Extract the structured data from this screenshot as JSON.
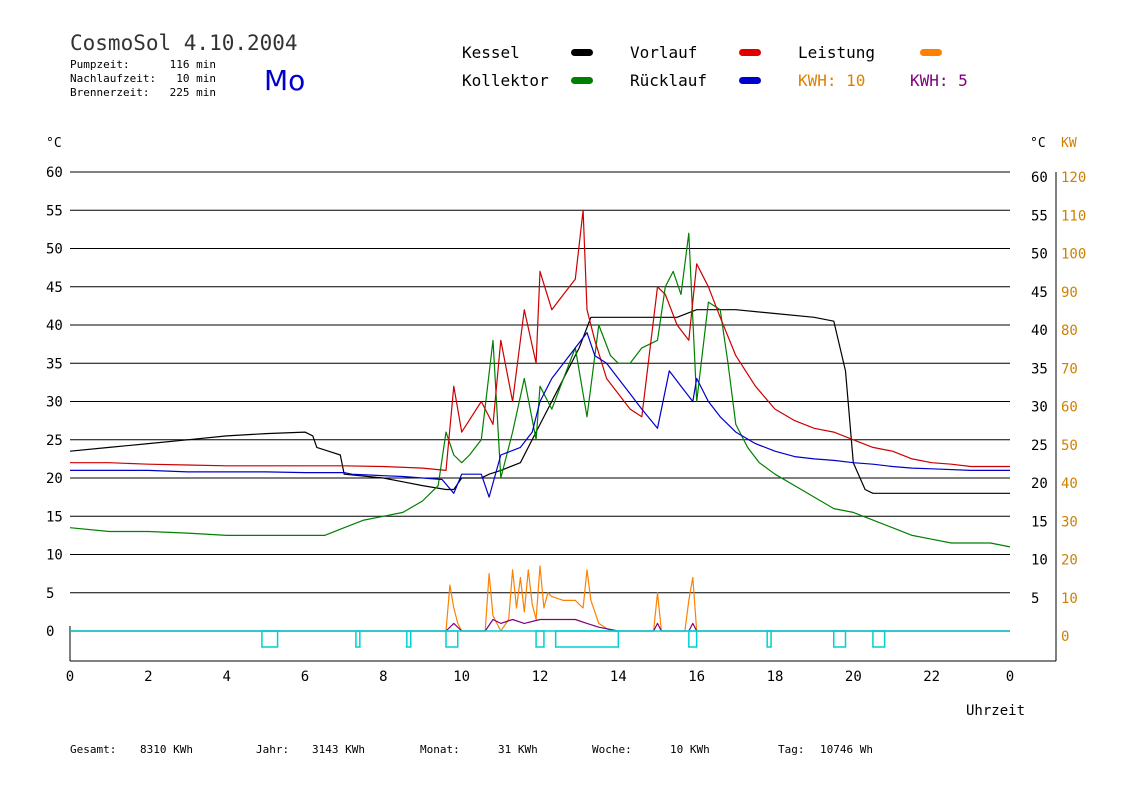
{
  "header": {
    "title": "CosmoSol 4.10.2004",
    "day": "Mo",
    "stats": [
      {
        "label": "Pumpzeit:",
        "value": "116 min"
      },
      {
        "label": "Nachlaufzeit:",
        "value": "10 min"
      },
      {
        "label": "Brennerzeit:",
        "value": "225 min"
      }
    ]
  },
  "legend": {
    "items": [
      {
        "key": "kessel",
        "label": "Kessel",
        "color": "#000000"
      },
      {
        "key": "kollektor",
        "label": "Kollektor",
        "color": "#008000"
      },
      {
        "key": "vorlauf",
        "label": "Vorlauf",
        "color": "#e00000"
      },
      {
        "key": "ruecklauf",
        "label": "Rücklauf",
        "color": "#0000cc"
      },
      {
        "key": "leistung",
        "label": "Leistung",
        "color": "#ff8000"
      }
    ],
    "kwh1": {
      "label": "KWH: 10",
      "color": "#e08000"
    },
    "kwh2": {
      "label": "KWH: 5",
      "color": "#800080"
    }
  },
  "footer": {
    "items": [
      {
        "label": "Gesamt:",
        "value": "8310 KWh"
      },
      {
        "label": "Jahr:",
        "value": "3143 KWh"
      },
      {
        "label": "Monat:",
        "value": "31 KWh"
      },
      {
        "label": "Woche:",
        "value": "10 KWh"
      },
      {
        "label": "Tag:",
        "value": "10746 Wh"
      }
    ]
  },
  "chart_data": {
    "type": "line",
    "xlabel": "Uhrzeit",
    "ylabel_left": "°C",
    "ylabel_right_temp": "°C",
    "ylabel_right_power": "KW",
    "xlim": [
      0,
      24
    ],
    "ylim": [
      0,
      60
    ],
    "y2lim": [
      0,
      120
    ],
    "x_tick_labels": [
      "0",
      "2",
      "4",
      "6",
      "8",
      "10",
      "12",
      "14",
      "16",
      "18",
      "20",
      "22",
      "0"
    ],
    "y_ticks": [
      0,
      5,
      10,
      15,
      20,
      25,
      30,
      35,
      40,
      45,
      50,
      55,
      60
    ],
    "y_right_ticks": [
      5,
      10,
      15,
      20,
      25,
      30,
      35,
      40,
      45,
      50,
      55,
      60
    ],
    "y2_ticks": [
      0,
      10,
      20,
      30,
      40,
      50,
      60,
      70,
      80,
      90,
      100,
      110,
      120
    ],
    "grid": true,
    "colors": {
      "grid": "#000000",
      "power_axis": "#d08000",
      "pump": "#00d0d0"
    },
    "series": [
      {
        "name": "Kessel",
        "color": "#000000",
        "x": [
          0,
          1,
          2,
          3,
          4,
          5,
          6,
          6.2,
          6.3,
          6.6,
          6.9,
          7,
          8,
          8.5,
          9,
          9.6,
          9.8,
          10,
          10.5,
          10.7,
          11,
          11.5,
          12,
          12.5,
          13,
          13.3,
          14,
          15,
          15.5,
          16,
          17,
          18,
          19,
          19.5,
          19.8,
          20,
          20.3,
          20.5,
          21,
          22,
          23,
          24
        ],
        "values": [
          23.5,
          24,
          24.5,
          25,
          25.5,
          25.8,
          26,
          25.5,
          24,
          23.5,
          23,
          20.5,
          20,
          19.5,
          19,
          18.5,
          18.5,
          20,
          20,
          20.5,
          21,
          22,
          27,
          32,
          37,
          41,
          41,
          41,
          41,
          42,
          42,
          41.5,
          41,
          40.5,
          34,
          22,
          18.5,
          18,
          18,
          18,
          18,
          18
        ]
      },
      {
        "name": "Kollektor",
        "color": "#008000",
        "x": [
          0,
          1,
          2,
          3,
          4,
          5,
          6,
          6.5,
          7,
          7.5,
          8,
          8.5,
          9,
          9.4,
          9.6,
          9.8,
          10,
          10.2,
          10.5,
          10.8,
          11,
          11.3,
          11.6,
          11.9,
          12,
          12.3,
          12.6,
          12.9,
          13.2,
          13.5,
          13.8,
          14,
          14.3,
          14.6,
          15,
          15.2,
          15.4,
          15.6,
          15.8,
          16,
          16.3,
          16.6,
          16.8,
          17,
          17.3,
          17.6,
          18,
          18.5,
          19,
          19.5,
          20,
          20.5,
          21,
          21.5,
          22,
          22.5,
          23,
          23.5,
          24
        ],
        "values": [
          13.5,
          13,
          13,
          12.8,
          12.5,
          12.5,
          12.5,
          12.5,
          13.5,
          14.5,
          15,
          15.5,
          17,
          19,
          26,
          23,
          22,
          23,
          25,
          38,
          20,
          26,
          33,
          25,
          32,
          29,
          33,
          37,
          28,
          40,
          36,
          35,
          35,
          37,
          38,
          45,
          47,
          44,
          52,
          30,
          43,
          42,
          35,
          27,
          24,
          22,
          20.5,
          19,
          17.5,
          16,
          15.5,
          14.5,
          13.5,
          12.5,
          12,
          11.5,
          11.5,
          11.5,
          11
        ]
      },
      {
        "name": "Vorlauf",
        "color": "#cc0000",
        "x": [
          0,
          1,
          2,
          3,
          4,
          5,
          6,
          7,
          8,
          9,
          9.6,
          9.8,
          10,
          10.5,
          10.8,
          11,
          11.3,
          11.6,
          11.9,
          12,
          12.3,
          12.6,
          12.9,
          13.1,
          13.2,
          13.4,
          13.7,
          14,
          14.3,
          14.6,
          15,
          15.2,
          15.5,
          15.8,
          16,
          16.3,
          16.6,
          17,
          17.5,
          18,
          18.5,
          19,
          19.5,
          20,
          20.5,
          21,
          21.5,
          22,
          22.5,
          23,
          23.5,
          24
        ],
        "values": [
          22,
          22,
          21.8,
          21.7,
          21.6,
          21.6,
          21.6,
          21.6,
          21.5,
          21.3,
          21,
          32,
          26,
          30,
          27,
          38,
          30,
          42,
          35,
          47,
          42,
          44,
          46,
          55,
          42,
          38,
          33,
          31,
          29,
          28,
          45,
          44,
          40,
          38,
          48,
          45,
          41,
          36,
          32,
          29,
          27.5,
          26.5,
          26,
          25,
          24,
          23.5,
          22.5,
          22,
          21.8,
          21.5,
          21.5,
          21.5
        ]
      },
      {
        "name": "Rücklauf",
        "color": "#0000cc",
        "x": [
          0,
          1,
          2,
          3,
          4,
          5,
          6,
          7,
          7.2,
          8,
          8.5,
          9,
          9.5,
          9.8,
          10,
          10.5,
          10.7,
          11,
          11.5,
          11.8,
          12,
          12.3,
          12.6,
          12.9,
          13.2,
          13.4,
          13.7,
          14,
          14.3,
          14.6,
          15,
          15.3,
          15.6,
          15.9,
          16,
          16.3,
          16.6,
          17,
          17.5,
          18,
          18.5,
          19,
          19.5,
          20,
          20.5,
          21,
          21.5,
          22,
          23,
          24
        ],
        "values": [
          21,
          21,
          21,
          20.8,
          20.8,
          20.8,
          20.7,
          20.7,
          20.5,
          20.3,
          20.2,
          20,
          19.8,
          18,
          20.5,
          20.5,
          17.5,
          23,
          24,
          26,
          30,
          33,
          35,
          37,
          39,
          36,
          35,
          33,
          31,
          29,
          26.5,
          34,
          32,
          30,
          33,
          30,
          28,
          26,
          24.5,
          23.5,
          22.8,
          22.5,
          22.3,
          22,
          21.8,
          21.5,
          21.3,
          21.2,
          21,
          21
        ]
      },
      {
        "name": "Leistung",
        "color": "#ff8000",
        "axis": "right",
        "x": [
          0,
          9.6,
          9.7,
          9.8,
          9.9,
          10,
          10.6,
          10.7,
          10.8,
          10.9,
          11,
          11.2,
          11.3,
          11.4,
          11.5,
          11.6,
          11.7,
          11.8,
          11.9,
          12,
          12.1,
          12.2,
          12.3,
          12.6,
          12.9,
          13.1,
          13.2,
          13.3,
          13.5,
          13.8,
          14,
          14.9,
          15,
          15.1,
          15.2,
          15.7,
          15.8,
          15.9,
          16,
          16.1,
          24
        ],
        "values": [
          0,
          0,
          12,
          6,
          2,
          0,
          0,
          15,
          4,
          2,
          0,
          3,
          16,
          6,
          14,
          5,
          16,
          7,
          3,
          17,
          6,
          10,
          9,
          8,
          8,
          6,
          16,
          8,
          2,
          0,
          0,
          0,
          10,
          0,
          0,
          0,
          8,
          14,
          0,
          0,
          0
        ]
      },
      {
        "name": "KWH: 5",
        "color": "#800080",
        "axis": "right",
        "x": [
          0,
          9.6,
          9.8,
          10,
          10.6,
          10.8,
          11,
          11.3,
          11.6,
          12,
          12.3,
          12.6,
          12.9,
          13.2,
          13.5,
          14,
          14.9,
          15,
          15.1,
          15.8,
          15.9,
          16,
          24
        ],
        "values": [
          0,
          0,
          2,
          0,
          0,
          3,
          2,
          3,
          2,
          3,
          3,
          3,
          3,
          2,
          1,
          0,
          0,
          2,
          0,
          0,
          2,
          0,
          0
        ]
      }
    ],
    "pump_on": [
      [
        4.9,
        5.3
      ],
      [
        7.3,
        7.4
      ],
      [
        8.6,
        8.7
      ],
      [
        9.6,
        9.9
      ],
      [
        11.9,
        12.1
      ],
      [
        12.4,
        14.0
      ],
      [
        15.8,
        16.0
      ],
      [
        17.8,
        17.9
      ],
      [
        19.5,
        19.8
      ],
      [
        20.5,
        20.8
      ]
    ]
  }
}
